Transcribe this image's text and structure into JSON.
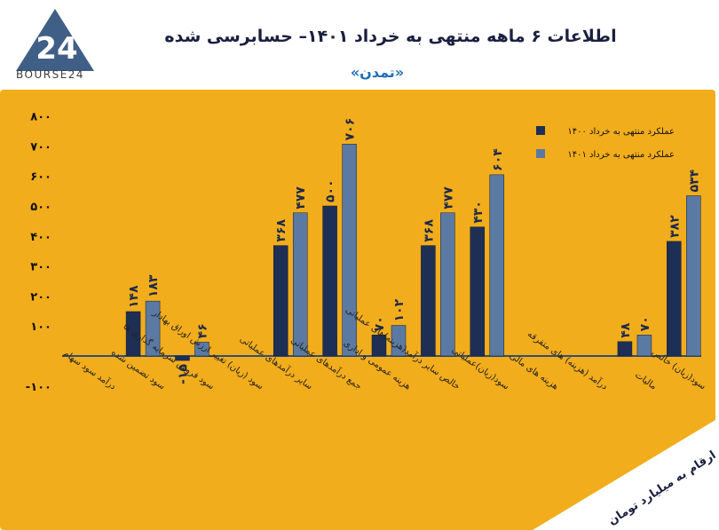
{
  "header": {
    "logo_text": "BOURSE24",
    "title": "اطلاعات ۶ ماهه منتهی به خرداد ۱۴۰۱– حسابرسی شده",
    "subtitle": "«تمدن»"
  },
  "note": "ارقام به میلیارد تومان",
  "colors": {
    "panel": "#f2ad1c",
    "series_1400": "#1e2f55",
    "series_1401": "#5b7aa3",
    "axis": "#2f4f78"
  },
  "chart_data": {
    "type": "bar",
    "title": "",
    "xlabel": "",
    "ylabel": "",
    "ylim": [
      -100,
      800
    ],
    "y_ticks": [
      -100,
      100,
      200,
      300,
      400,
      500,
      600,
      700,
      800
    ],
    "y_tick_labels": [
      "-۱۰۰",
      "۱۰۰",
      "۲۰۰",
      "۳۰۰",
      "۴۰۰",
      "۵۰۰",
      "۶۰۰",
      "۷۰۰",
      "۸۰۰"
    ],
    "categories": [
      "درآمد سود سهام",
      "سود تضمین شده",
      "سود فروش سرمایه گذاری ها",
      "سود (زیان) تغییر ارزش اوراق بهادار",
      "سایر درآمدهای عملیاتی",
      "جمع درآمدهای عملیاتی",
      "هزینه عمومی و اداری",
      "خالص سایر درآمد(هزینه)های عملیاتی",
      "سود(زیان)عملیاتی",
      "هزینه های مالی",
      "درآمد (هزینه) های متفرقه",
      "مالیات",
      "سود(زیان) خالص"
    ],
    "legend_position": "top-right",
    "series": [
      {
        "name": "عملکرد منتهی به خرداد ۱۴۰۰",
        "values": [
          null,
          148,
          -15,
          null,
          368,
          500,
          70,
          368,
          430,
          null,
          null,
          48,
          382
        ],
        "labels": [
          "",
          "۱۴۸",
          "-۱۵",
          "",
          "۳۶۸",
          "۵۰۰",
          "۷۰",
          "۳۶۸",
          "۴۳۰",
          "",
          "",
          "۴۸",
          "۳۸۲"
        ]
      },
      {
        "name": "عملکرد منتهی به خرداد ۱۴۰۱",
        "values": [
          null,
          183,
          46,
          null,
          477,
          706,
          102,
          477,
          604,
          null,
          null,
          70,
          534
        ],
        "labels": [
          "",
          "۱۸۳",
          "۴۶",
          "",
          "۴۷۷",
          "۷۰۶",
          "۱۰۲",
          "۴۷۷",
          "۶۰۴",
          "",
          "",
          "۷۰",
          "۵۳۴"
        ]
      }
    ]
  }
}
